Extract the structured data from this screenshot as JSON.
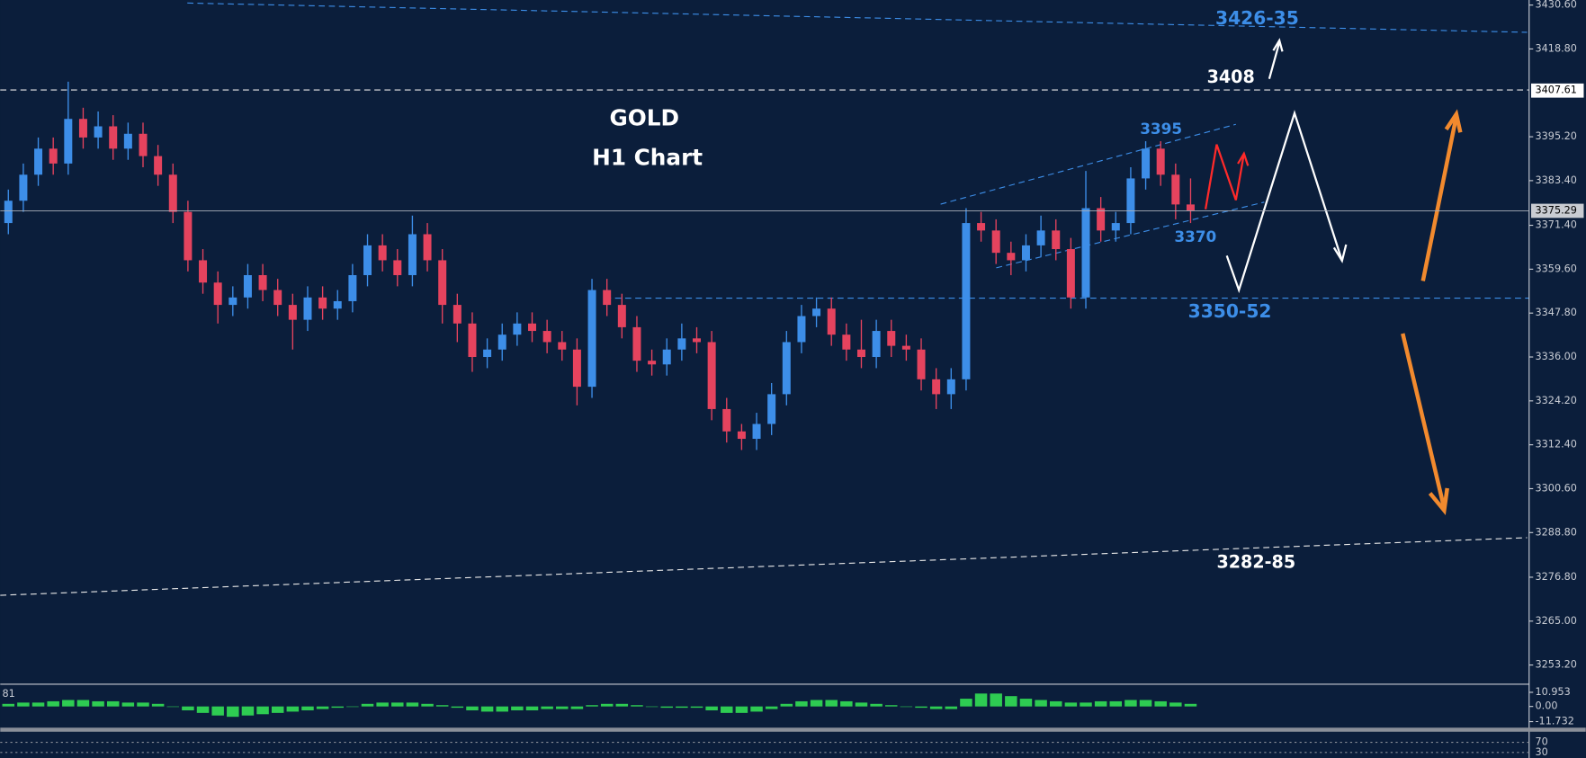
{
  "chart_data": {
    "type": "candlestick",
    "title": "GOLD",
    "subtitle": "H1 Chart",
    "up_color": "#3d8ee8",
    "down_color": "#e5435e",
    "open": [
      3372,
      3378,
      3385,
      3392,
      3388,
      3400,
      3395,
      3398,
      3392,
      3396,
      3390,
      3385,
      3375,
      3362,
      3356,
      3350,
      3352,
      3358,
      3354,
      3350,
      3346,
      3352,
      3349,
      3351,
      3358,
      3366,
      3362,
      3358,
      3369,
      3362,
      3350,
      3345,
      3336,
      3338,
      3342,
      3345,
      3343,
      3340,
      3338,
      3328,
      3354,
      3350,
      3344,
      3335,
      3334,
      3338,
      3341,
      3340,
      3322,
      3316,
      3314,
      3318,
      3326,
      3340,
      3347,
      3349,
      3342,
      3338,
      3336,
      3343,
      3339,
      3338,
      3330,
      3326,
      3330,
      3372,
      3370,
      3364,
      3362,
      3366,
      3370,
      3365,
      3352,
      3376,
      3370,
      3372,
      3384,
      3392,
      3385,
      3377
    ],
    "high": [
      3381,
      3388,
      3395,
      3395,
      3410,
      3403,
      3402,
      3401,
      3399,
      3399,
      3393,
      3388,
      3378,
      3365,
      3359,
      3355,
      3361,
      3361,
      3357,
      3353,
      3355,
      3355,
      3354,
      3361,
      3369,
      3369,
      3365,
      3374,
      3372,
      3365,
      3353,
      3348,
      3341,
      3345,
      3348,
      3348,
      3346,
      3343,
      3341,
      3357,
      3357,
      3353,
      3347,
      3338,
      3341,
      3345,
      3344,
      3343,
      3325,
      3318,
      3321,
      3329,
      3343,
      3350,
      3352,
      3352,
      3345,
      3346,
      3346,
      3346,
      3342,
      3341,
      3333,
      3333,
      3376,
      3375,
      3373,
      3367,
      3369,
      3374,
      3373,
      3368,
      3386,
      3379,
      3375,
      3387,
      3394,
      3394,
      3388,
      3384
    ],
    "low": [
      3369,
      3375,
      3382,
      3385,
      3385,
      3392,
      3392,
      3389,
      3389,
      3387,
      3382,
      3372,
      3359,
      3353,
      3345,
      3347,
      3349,
      3351,
      3347,
      3338,
      3343,
      3346,
      3346,
      3348,
      3355,
      3359,
      3355,
      3355,
      3359,
      3345,
      3340,
      3332,
      3333,
      3335,
      3339,
      3340,
      3337,
      3335,
      3323,
      3325,
      3347,
      3341,
      3332,
      3331,
      3331,
      3335,
      3337,
      3319,
      3313,
      3311,
      3311,
      3315,
      3323,
      3337,
      3344,
      3339,
      3335,
      3333,
      3333,
      3336,
      3335,
      3327,
      3322,
      3322,
      3327,
      3367,
      3361,
      3358,
      3359,
      3363,
      3362,
      3349,
      3349,
      3367,
      3367,
      3369,
      3381,
      3382,
      3373,
      3372
    ],
    "close": [
      3378,
      3385,
      3392,
      3388,
      3400,
      3395,
      3398,
      3392,
      3396,
      3390,
      3385,
      3375,
      3362,
      3356,
      3350,
      3352,
      3358,
      3354,
      3350,
      3346,
      3352,
      3349,
      3351,
      3358,
      3366,
      3362,
      3358,
      3369,
      3362,
      3350,
      3345,
      3336,
      3338,
      3342,
      3345,
      3343,
      3340,
      3338,
      3328,
      3354,
      3350,
      3344,
      3335,
      3334,
      3338,
      3341,
      3340,
      3322,
      3316,
      3314,
      3318,
      3326,
      3340,
      3347,
      3349,
      3342,
      3338,
      3336,
      3343,
      3339,
      3338,
      3330,
      3326,
      3330,
      3372,
      3370,
      3364,
      3362,
      3366,
      3370,
      3365,
      3352,
      3376,
      3370,
      3372,
      3384,
      3392,
      3385,
      3377,
      3375.29
    ],
    "ylim": [
      3253.2,
      3430.6
    ],
    "yticks": [
      {
        "value": 3430.6,
        "label": "3430.60"
      },
      {
        "value": 3418.8,
        "label": "3418.80"
      },
      {
        "value": 3395.2,
        "label": "3395.20"
      },
      {
        "value": 3383.4,
        "label": "3383.40"
      },
      {
        "value": 3371.4,
        "label": "3371.40"
      },
      {
        "value": 3359.6,
        "label": "3359.60"
      },
      {
        "value": 3347.8,
        "label": "3347.80"
      },
      {
        "value": 3336,
        "label": "3336.00"
      },
      {
        "value": 3324.2,
        "label": "3324.20"
      },
      {
        "value": 3312.4,
        "label": "3312.40"
      },
      {
        "value": 3300.6,
        "label": "3300.60"
      },
      {
        "value": 3288.8,
        "label": "3288.80"
      },
      {
        "value": 3276.8,
        "label": "3276.80"
      },
      {
        "value": 3265,
        "label": "3265.00"
      },
      {
        "value": 3253.2,
        "label": "3253.20"
      }
    ],
    "marker_lines": [
      {
        "value": 3407.61,
        "label": "3407.61"
      },
      {
        "value": 3375.29,
        "label": "3375.29"
      }
    ],
    "annotations": [
      "3426-35",
      "3408",
      "3395",
      "3370",
      "3350-52",
      "3282-85"
    ],
    "oscillator": {
      "title": "81",
      "color": "#2ecc52",
      "values": [
        2,
        3,
        3,
        4,
        5,
        5,
        4,
        4,
        3,
        3,
        2,
        0,
        -3,
        -5,
        -7,
        -8,
        -7,
        -6,
        -5,
        -4,
        -3,
        -2,
        -1,
        0,
        2,
        3,
        3,
        3,
        2,
        1,
        -1,
        -3,
        -4,
        -4,
        -3,
        -3,
        -2,
        -2,
        -2,
        1,
        2,
        2,
        1,
        0,
        -1,
        -1,
        -1,
        -3,
        -5,
        -5,
        -4,
        -2,
        2,
        4,
        5,
        5,
        4,
        3,
        2,
        1,
        0,
        -1,
        -2,
        -2,
        6,
        10,
        10,
        8,
        6,
        5,
        4,
        3,
        3,
        4,
        4,
        5,
        5,
        4,
        3,
        2
      ],
      "ylim": [
        -11.732,
        10.953
      ],
      "yticks": [
        {
          "value": 10.953,
          "label": "10.953"
        },
        {
          "value": 0,
          "label": "0.00"
        },
        {
          "value": -11.732,
          "label": "-11.732"
        }
      ]
    },
    "rsi": {
      "ylim": [
        0,
        100
      ],
      "yticks": [
        70,
        30
      ]
    }
  }
}
